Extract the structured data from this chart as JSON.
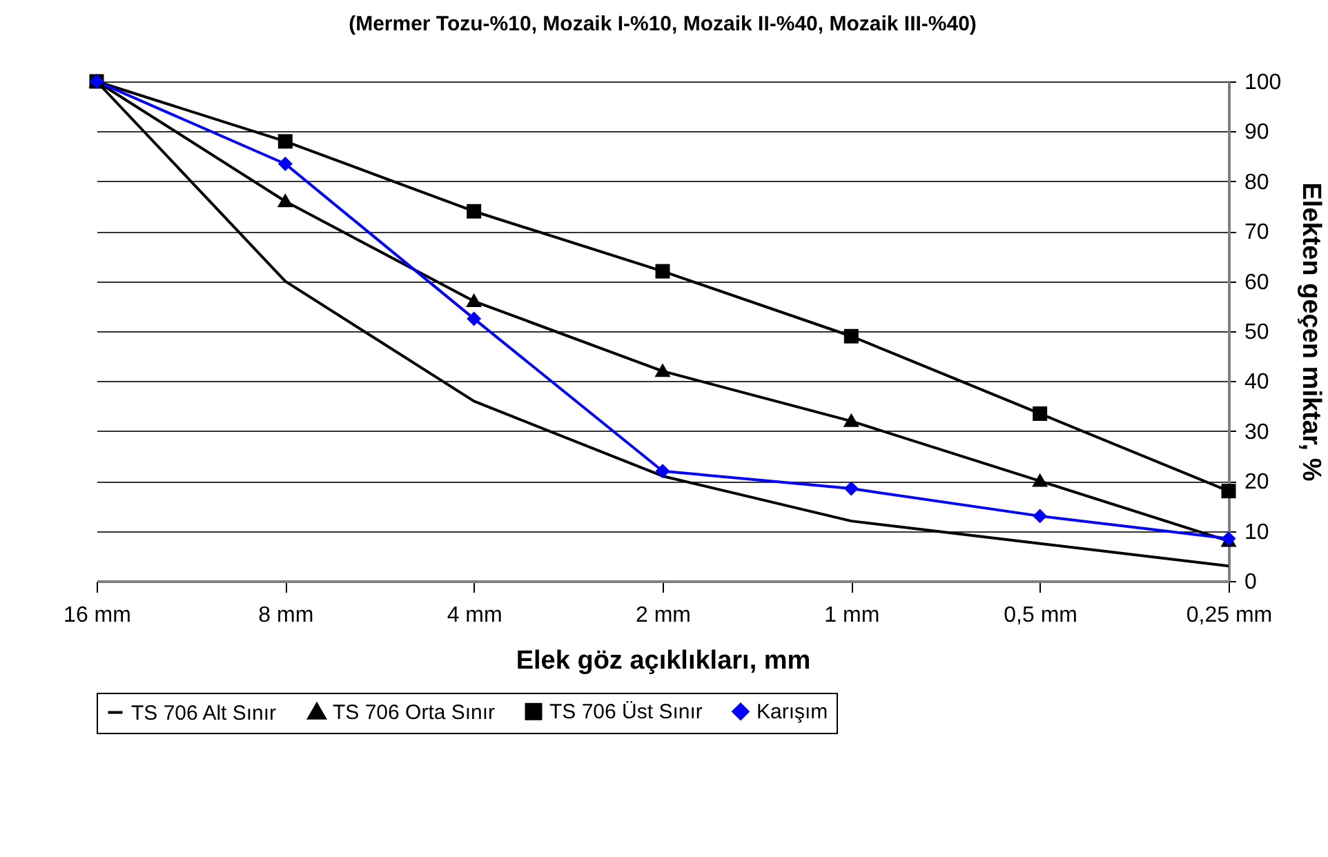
{
  "chart_data": {
    "type": "line",
    "title": "(Mermer Tozu-%10, Mozaik I-%10, Mozaik II-%40, Mozaik III-%40)",
    "xlabel": "Elek göz açıklıkları, mm",
    "ylabel": "Elekten geçen miktar, %",
    "categories": [
      "16 mm",
      "8 mm",
      "4 mm",
      "2 mm",
      "1 mm",
      "0,5 mm",
      "0,25 mm"
    ],
    "series": [
      {
        "name": "TS 706 Alt Sınır",
        "color": "#000000",
        "marker": "none",
        "values": [
          100,
          60,
          36,
          21,
          12,
          7.5,
          3
        ]
      },
      {
        "name": "TS 706 Orta Sınır",
        "color": "#000000",
        "marker": "triangle",
        "values": [
          100,
          76,
          56,
          42,
          32,
          20,
          8
        ]
      },
      {
        "name": "TS 706 Üst Sınır",
        "color": "#000000",
        "marker": "square",
        "values": [
          100,
          88,
          74,
          62,
          49,
          33.5,
          18
        ]
      },
      {
        "name": "Karışım",
        "color": "#0000ff",
        "marker": "diamond",
        "values": [
          100,
          83.5,
          52.5,
          22,
          18.5,
          13,
          8.5
        ]
      }
    ],
    "ylim": [
      0,
      100
    ],
    "yticks": [
      0,
      10,
      20,
      30,
      40,
      50,
      60,
      70,
      80,
      90,
      100
    ],
    "grid": "y",
    "legend": "bottom"
  }
}
